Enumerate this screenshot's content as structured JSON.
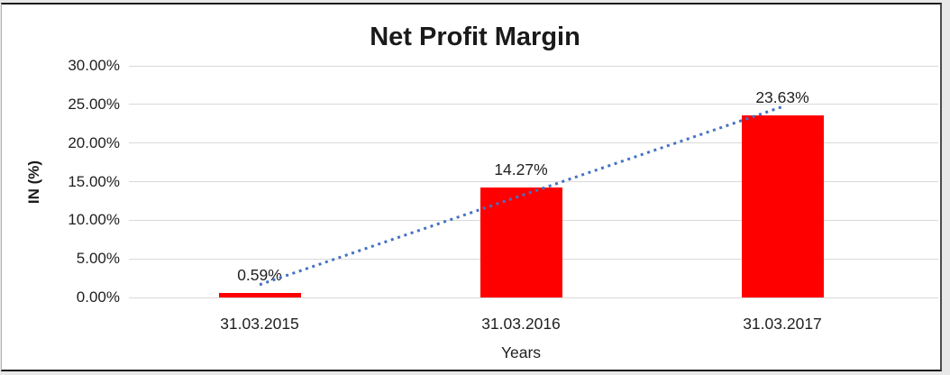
{
  "chart_data": {
    "type": "bar",
    "title": "Net Profit Margin",
    "xlabel": "Years",
    "ylabel": "IN (%)",
    "categories": [
      "31.03.2015",
      "31.03.2016",
      "31.03.2017"
    ],
    "values": [
      0.59,
      14.27,
      23.63
    ],
    "data_labels": [
      "0.59%",
      "14.27%",
      "23.63%"
    ],
    "yticks": [
      {
        "label": "0.00%",
        "value": 0
      },
      {
        "label": "5.00%",
        "value": 5
      },
      {
        "label": "10.00%",
        "value": 10
      },
      {
        "label": "15.00%",
        "value": 15
      },
      {
        "label": "20.00%",
        "value": 20
      },
      {
        "label": "25.00%",
        "value": 25
      },
      {
        "label": "30.00%",
        "value": 30
      }
    ],
    "ylim": [
      0,
      30
    ],
    "grid": true,
    "legend": false,
    "bar_color": "#FF0000",
    "trendline": {
      "type": "linear",
      "style": "dotted",
      "color": "#4472C4",
      "endpoints_value": [
        1.31,
        24.35
      ]
    }
  }
}
